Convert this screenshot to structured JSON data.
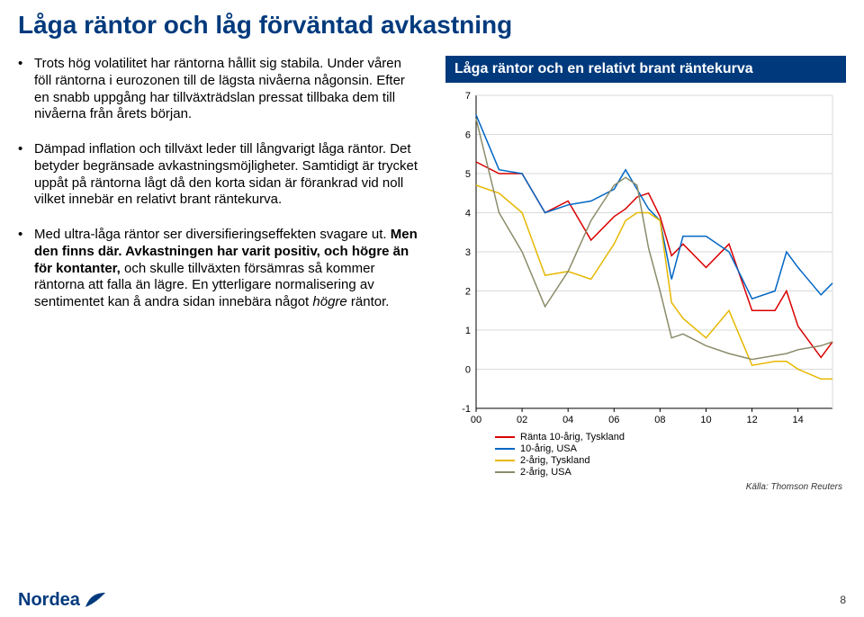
{
  "title": "Låga räntor och låg förväntad avkastning",
  "bullets": [
    {
      "runs": [
        {
          "t": "Trots hög volatilitet har räntorna hållit sig stabila. ",
          "b": false,
          "i": false
        },
        {
          "t": "Under våren föll räntorna i eurozonen till de lägsta nivåerna någonsin. Efter en snabb uppgång har tillväxträdslan pressat tillbaka dem till nivåerna från årets början.",
          "b": false,
          "i": false
        }
      ]
    },
    {
      "runs": [
        {
          "t": "Dämpad inflation och tillväxt leder till långvarigt låga räntor. ",
          "b": false,
          "i": false
        },
        {
          "t": "Det betyder begränsade avkastningsmöjligheter. Samtidigt är trycket uppåt på räntorna lågt då den korta sidan är förankrad vid noll vilket innebär en relativt brant räntekurva.",
          "b": false,
          "i": false
        }
      ]
    },
    {
      "runs": [
        {
          "t": "Med ultra-låga räntor ser diversifieringseffekten svagare ut. ",
          "b": false,
          "i": false
        },
        {
          "t": "Men den finns där. Avkastningen har varit positiv, och högre än för kontanter, ",
          "b": true,
          "i": false
        },
        {
          "t": "och skulle tillväxten försämras så kommer räntorna att falla än lägre. En ytterligare normalisering av sentimentet kan å andra sidan innebära något ",
          "b": false,
          "i": false
        },
        {
          "t": "högre",
          "b": false,
          "i": true
        },
        {
          "t": " räntor.",
          "b": false,
          "i": false
        }
      ]
    }
  ],
  "chart": {
    "title": "Låga räntor och en relativt brant räntekurva",
    "type": "line",
    "background_color": "#ffffff",
    "grid_color": "#d9d9d9",
    "axis_color": "#000000",
    "ylim": [
      -1,
      7
    ],
    "ytick_step": 1,
    "x_categories": [
      "00",
      "02",
      "04",
      "06",
      "08",
      "10",
      "12",
      "14"
    ],
    "x_positions": [
      0,
      2,
      4,
      6,
      8,
      10,
      12,
      14
    ],
    "xlim": [
      0,
      15.5
    ],
    "label_fontsize": 11,
    "line_width": 1.5,
    "series": [
      {
        "name": "Ränta 10-årig, Tyskland",
        "color": "#d90000",
        "x": [
          0,
          1,
          2,
          3,
          4,
          5,
          6,
          6.5,
          7,
          7.5,
          8,
          8.5,
          9,
          10,
          11,
          12,
          13,
          13.5,
          14,
          15,
          15.5
        ],
        "y": [
          5.3,
          5.0,
          5.0,
          4.0,
          4.3,
          3.3,
          3.9,
          4.1,
          4.4,
          4.5,
          3.9,
          2.9,
          3.2,
          2.6,
          3.2,
          1.5,
          1.5,
          2.0,
          1.1,
          0.3,
          0.7
        ]
      },
      {
        "name": "10-årig, USA",
        "color": "#0066c4",
        "x": [
          0,
          1,
          2,
          3,
          4,
          5,
          6,
          6.5,
          7,
          7.5,
          8,
          8.5,
          9,
          10,
          11,
          12,
          13,
          13.5,
          14,
          15,
          15.5
        ],
        "y": [
          6.5,
          5.1,
          5.0,
          4.0,
          4.2,
          4.3,
          4.6,
          5.1,
          4.6,
          4.1,
          3.8,
          2.3,
          3.4,
          3.4,
          3.0,
          1.8,
          2.0,
          3.0,
          2.6,
          1.9,
          2.2
        ]
      },
      {
        "name": "2-årig, Tyskland",
        "color": "#e6b800",
        "x": [
          0,
          1,
          2,
          3,
          4,
          5,
          6,
          6.5,
          7,
          7.5,
          8,
          8.5,
          9,
          10,
          11,
          12,
          13,
          13.5,
          14,
          15,
          15.5
        ],
        "y": [
          4.7,
          4.5,
          4.0,
          2.4,
          2.5,
          2.3,
          3.2,
          3.8,
          4.0,
          4.0,
          3.8,
          1.7,
          1.3,
          0.8,
          1.5,
          0.1,
          0.2,
          0.2,
          0.0,
          -0.25,
          -0.25
        ]
      },
      {
        "name": "2-årig, USA",
        "color": "#8c8c6b",
        "x": [
          0,
          1,
          2,
          3,
          4,
          5,
          6,
          6.5,
          7,
          7.5,
          8,
          8.5,
          9,
          10,
          11,
          12,
          13,
          13.5,
          14,
          15,
          15.5
        ],
        "y": [
          6.4,
          4.0,
          3.0,
          1.6,
          2.5,
          3.8,
          4.7,
          4.9,
          4.7,
          3.1,
          2.0,
          0.8,
          0.9,
          0.6,
          0.4,
          0.25,
          0.35,
          0.4,
          0.5,
          0.6,
          0.7
        ]
      }
    ],
    "source": "Källa: Thomson Reuters"
  },
  "footer": {
    "logo_text": "Nordea",
    "page_number": "8"
  },
  "colors": {
    "brand": "#003a7d",
    "text": "#000000"
  }
}
